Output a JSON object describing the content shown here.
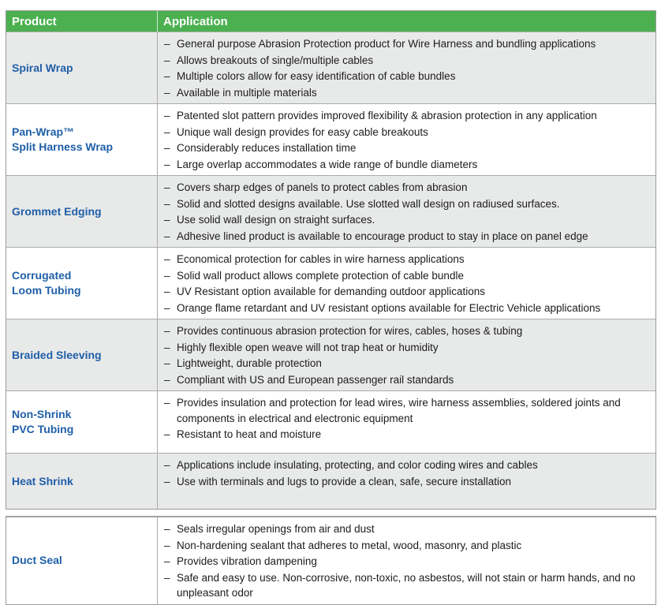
{
  "header": {
    "product": "Product",
    "application": "Application"
  },
  "bullet_char": "–",
  "colors": {
    "header_bg": "#4cb050",
    "header_text": "#ffffff",
    "product_text": "#1f5fa8",
    "row_shaded": "#e8e9e9",
    "row_white": "#ffffff",
    "border": "#9b9b9b",
    "body_text": "#1c1c1c"
  },
  "table": {
    "sections": [
      {
        "rows": [
          {
            "product_lines": [
              "Spiral Wrap"
            ],
            "bullets": [
              "General purpose Abrasion Protection product for Wire Harness and bundling applications",
              "Allows breakouts of single/multiple cables",
              "Multiple colors allow for easy identification of cable bundles",
              "Available in multiple materials"
            ]
          },
          {
            "product_lines": [
              "Pan-Wrap™",
              "Split Harness Wrap"
            ],
            "bullets": [
              "Patented slot pattern provides improved flexibility & abrasion protection in any application",
              "Unique wall design provides for easy cable breakouts",
              "Considerably reduces installation time",
              "Large overlap accommodates a wide range of bundle diameters"
            ]
          },
          {
            "product_lines": [
              "Grommet Edging"
            ],
            "bullets": [
              "Covers sharp edges of panels to protect cables from abrasion",
              "Solid and slotted designs available. Use slotted wall design on radiused surfaces.",
              "Use solid wall design on straight surfaces.",
              "Adhesive lined product is available to encourage product to stay in place on panel edge"
            ]
          },
          {
            "product_lines": [
              "Corrugated",
              "Loom Tubing"
            ],
            "bullets": [
              "Economical protection for cables in wire harness applications",
              "Solid wall product allows complete protection of cable bundle",
              "UV Resistant option available for demanding outdoor applications",
              "Orange flame retardant and UV resistant options available for Electric Vehicle applications"
            ]
          },
          {
            "product_lines": [
              "Braided Sleeving"
            ],
            "bullets": [
              "Provides continuous abrasion protection for wires, cables, hoses & tubing",
              "Highly flexible open weave will not trap heat or humidity",
              "Lightweight, durable protection",
              "Compliant with US and European passenger rail standards"
            ]
          },
          {
            "product_lines": [
              "Non-Shrink",
              "PVC Tubing"
            ],
            "bullets": [
              "Provides insulation and protection for lead wires, wire harness assemblies, soldered joints and components in electrical and electronic equipment",
              "Resistant to heat and moisture"
            ]
          },
          {
            "product_lines": [
              "Heat Shrink"
            ],
            "bullets": [
              "Applications include insulating, protecting, and color coding wires and cables",
              "Use with terminals and lugs to provide a clean, safe, secure installation"
            ]
          }
        ]
      },
      {
        "rows": [
          {
            "product_lines": [
              "Duct Seal"
            ],
            "bullets": [
              "Seals irregular openings from air and dust",
              "Non-hardening sealant that adheres to metal, wood, masonry, and plastic",
              "Provides vibration dampening",
              "Safe and easy to use. Non-corrosive, non-toxic, no asbestos, will not stain or harm hands, and no unpleasant odor"
            ]
          }
        ]
      }
    ]
  }
}
